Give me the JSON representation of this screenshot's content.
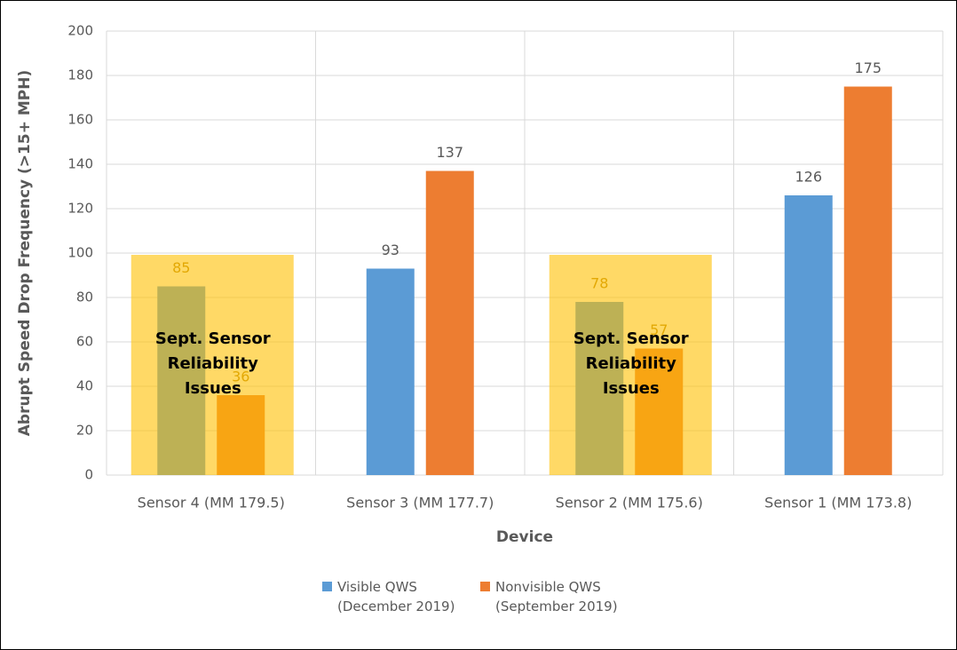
{
  "chart_data": {
    "type": "bar",
    "categories": [
      "Sensor 4 (MM 179.5)",
      "Sensor 3 (MM 177.7)",
      "Sensor 2 (MM 175.6)",
      "Sensor 1 (MM 173.8)"
    ],
    "series": [
      {
        "name": "Visible QWS (December 2019)",
        "color": "#5b9bd5",
        "values": [
          85,
          93,
          78,
          126
        ]
      },
      {
        "name": "Nonvisible QWS (September 2019)",
        "color": "#ed7d31",
        "values": [
          36,
          137,
          57,
          175
        ]
      }
    ],
    "ylim": [
      0,
      200
    ],
    "yticks": [
      0,
      20,
      40,
      60,
      80,
      100,
      120,
      140,
      160,
      180,
      200
    ],
    "grid": true,
    "y_label": "Abrupt Speed Drop Frequency (>15+ MPH)",
    "x_label": "Device",
    "annotations": [
      {
        "category": "Sensor 4 (MM 179.5)",
        "lines": [
          "Sept. Sensor",
          "Reliability",
          "Issues"
        ],
        "color": "#ffc000"
      },
      {
        "category": "Sensor 2 (MM 175.6)",
        "lines": [
          "Sept. Sensor",
          "Reliability",
          "Issues"
        ],
        "color": "#ffc000"
      }
    ]
  }
}
